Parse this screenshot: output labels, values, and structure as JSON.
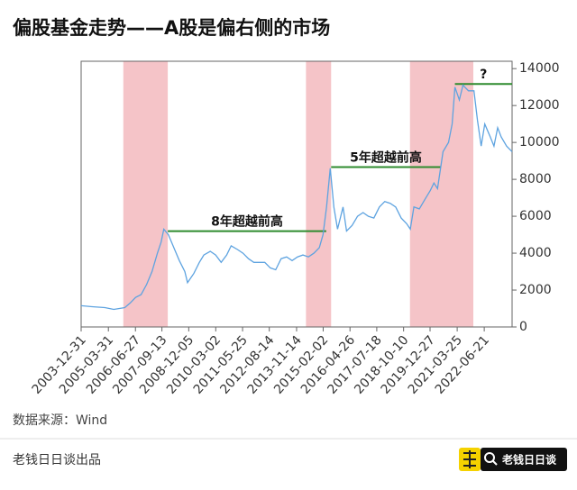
{
  "chart_data": {
    "type": "line",
    "title": "偏股基金走势——A股是偏右侧的市场",
    "source": "数据来源：Wind",
    "footer": "老钱日日谈出品",
    "logo_text": "老钱日日谈",
    "x": [
      "2003-12-31",
      "2004-06-30",
      "2005-01-31",
      "2005-06-30",
      "2005-12-31",
      "2006-03-31",
      "2006-06-30",
      "2006-09-30",
      "2006-12-31",
      "2007-03-31",
      "2007-06-30",
      "2007-08-31",
      "2007-10-15",
      "2007-12-31",
      "2008-03-31",
      "2008-06-30",
      "2008-09-30",
      "2008-11-15",
      "2009-02-28",
      "2009-05-31",
      "2009-08-15",
      "2009-11-30",
      "2010-02-28",
      "2010-05-31",
      "2010-08-31",
      "2010-11-15",
      "2011-02-28",
      "2011-05-31",
      "2011-08-31",
      "2011-11-30",
      "2012-02-29",
      "2012-05-31",
      "2012-08-31",
      "2012-11-30",
      "2013-02-28",
      "2013-05-31",
      "2013-08-31",
      "2013-11-30",
      "2014-02-28",
      "2014-05-31",
      "2014-08-31",
      "2014-11-30",
      "2015-01-31",
      "2015-03-31",
      "2015-05-31",
      "2015-07-31",
      "2015-09-30",
      "2015-12-31",
      "2016-02-29",
      "2016-05-31",
      "2016-08-31",
      "2016-11-30",
      "2017-02-28",
      "2017-05-31",
      "2017-08-31",
      "2017-11-30",
      "2018-02-28",
      "2018-05-31",
      "2018-08-31",
      "2018-11-30",
      "2019-01-31",
      "2019-03-31",
      "2019-06-30",
      "2019-09-30",
      "2019-12-31",
      "2020-02-29",
      "2020-04-30",
      "2020-07-31",
      "2020-10-31",
      "2020-12-31",
      "2021-02-15",
      "2021-04-30",
      "2021-06-30",
      "2021-09-30",
      "2021-12-31",
      "2022-02-28",
      "2022-04-30",
      "2022-06-30",
      "2022-09-30",
      "2022-11-30",
      "2023-01-31",
      "2023-03-31",
      "2023-06-30",
      "2023-09-30"
    ],
    "series": [
      {
        "color": "#5ea3e0",
        "values": [
          1150,
          1100,
          1050,
          950,
          1050,
          1300,
          1600,
          1750,
          2300,
          3000,
          4000,
          4600,
          5300,
          5000,
          4300,
          3600,
          3000,
          2400,
          2900,
          3500,
          3900,
          4100,
          3900,
          3500,
          3900,
          4400,
          4200,
          4000,
          3700,
          3500,
          3500,
          3500,
          3200,
          3100,
          3700,
          3800,
          3600,
          3800,
          3900,
          3800,
          4000,
          4300,
          5000,
          6500,
          8600,
          6500,
          5300,
          6500,
          5200,
          5500,
          6000,
          6200,
          6000,
          5900,
          6500,
          6800,
          6700,
          6500,
          5900,
          5600,
          5300,
          6500,
          6400,
          6900,
          7400,
          7800,
          7500,
          9500,
          10000,
          11000,
          13000,
          12300,
          13100,
          12800,
          12800,
          11200,
          9800,
          11000,
          10300,
          9800,
          10800,
          10300,
          9800,
          9500
        ]
      }
    ],
    "xlim": [
      "2003-12-31",
      "2023-09-30"
    ],
    "xticks": [
      "2003-12-31",
      "2005-03-31",
      "2006-06-27",
      "2007-09-13",
      "2008-12-05",
      "2010-03-02",
      "2011-05-25",
      "2012-08-14",
      "2013-11-14",
      "2015-02-02",
      "2016-04-26",
      "2017-07-18",
      "2018-10-10",
      "2019-12-27",
      "2021-03-25",
      "2022-06-21"
    ],
    "ylim": [
      0,
      14400
    ],
    "yticks": [
      0,
      2000,
      4000,
      6000,
      8000,
      10000,
      12000,
      14000
    ],
    "shaded_ranges": [
      [
        "2005-12-06",
        "2007-12-20"
      ],
      [
        "2014-04-20",
        "2015-06-15"
      ],
      [
        "2019-01-25",
        "2021-12-20"
      ]
    ],
    "shade_color": "#f5c4c8",
    "annotations": [
      {
        "text": "8年超越前高",
        "x_start": "2007-12-20",
        "x_end": "2015-03-25",
        "y": 5190
      },
      {
        "text": "5年超越前高",
        "x_start": "2015-06-15",
        "x_end": "2020-06-20",
        "y": 8665
      },
      {
        "text": "?",
        "x_start": "2021-02-15",
        "x_end": "2023-09-30",
        "y": 13170
      }
    ],
    "annotation_color": "#2e8b2e"
  }
}
